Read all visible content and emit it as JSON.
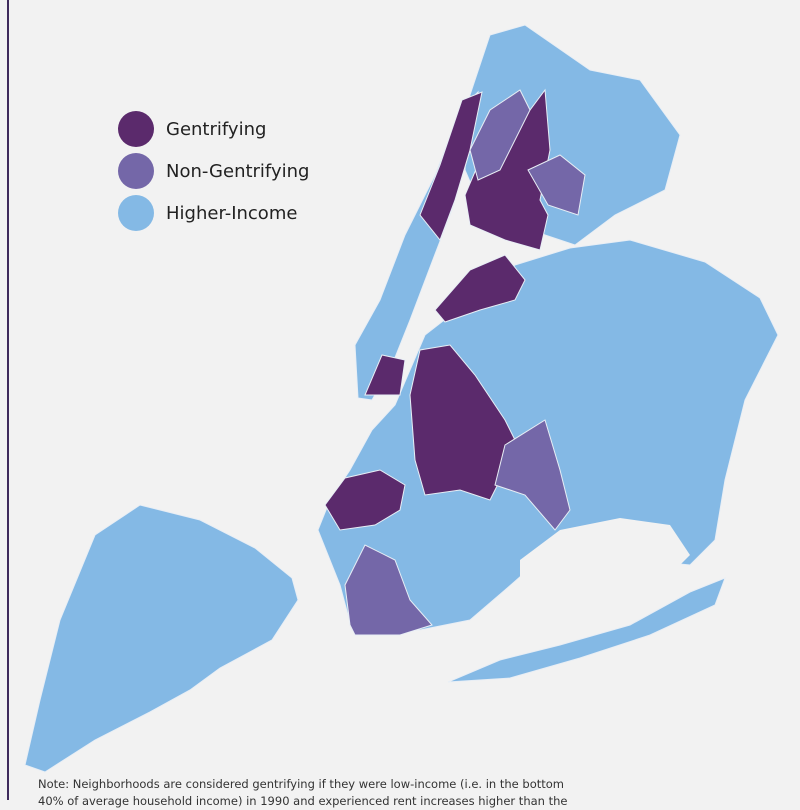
{
  "legend": {
    "items": [
      {
        "label": "Gentrifying",
        "color": "#5b2a6c"
      },
      {
        "label": "Non-Gentrifying",
        "color": "#7467a8"
      },
      {
        "label": "Higher-Income",
        "color": "#84b9e5"
      }
    ]
  },
  "note": {
    "lines": [
      "Note: Neighborhoods are considered gentrifying if they were low-income (i.e. in the bottom",
      "40% of average household income) in 1990 and experienced rent increases higher than the"
    ]
  }
}
